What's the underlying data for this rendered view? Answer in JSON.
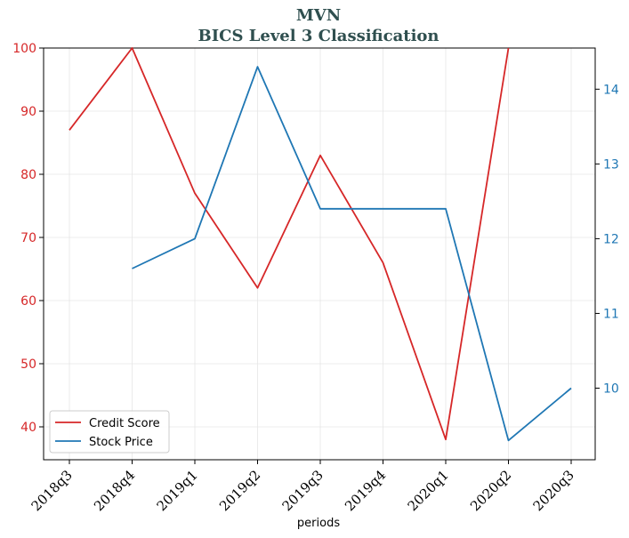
{
  "chart_data": {
    "type": "line",
    "title": "MVN",
    "subtitle": "BICS Level 3 Classification",
    "xlabel": "periods",
    "categories": [
      "2018q3",
      "2018q4",
      "2019q1",
      "2019q2",
      "2019q3",
      "2019q4",
      "2020q1",
      "2020q2",
      "2020q3"
    ],
    "series": [
      {
        "name": "Credit Score",
        "axis": "left",
        "color": "#d62728",
        "values": [
          87,
          100,
          77,
          62,
          83,
          66,
          38,
          100,
          null
        ]
      },
      {
        "name": "Stock Price",
        "axis": "right",
        "color": "#1f77b4",
        "values": [
          null,
          11.6,
          12.0,
          14.3,
          12.4,
          12.4,
          12.4,
          9.3,
          10.0
        ]
      }
    ],
    "y_left": {
      "ylim": [
        35,
        100
      ],
      "ticks": [
        40,
        50,
        60,
        70,
        80,
        90,
        100
      ]
    },
    "y_right": {
      "ylim": [
        9.1,
        14.55
      ],
      "ticks": [
        10,
        11,
        12,
        13,
        14
      ]
    },
    "grid": true,
    "legend_position": "lower-left"
  }
}
